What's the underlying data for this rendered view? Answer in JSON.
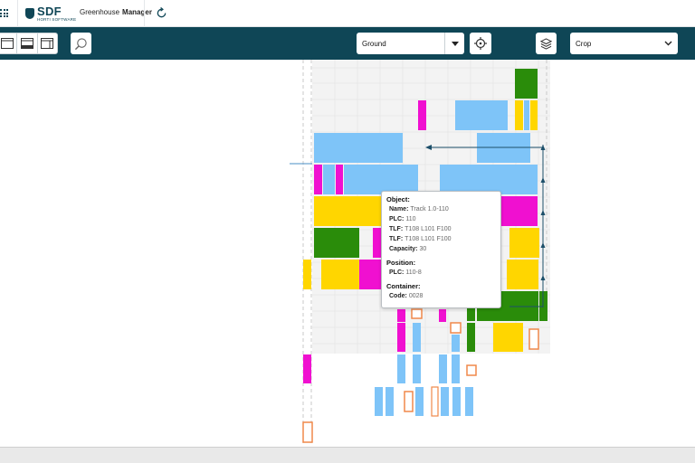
{
  "header": {
    "logo_text": "SDF",
    "logo_subtext": "HORTI SOFTWARE",
    "app_title_part1": "Greenhouse",
    "app_title_part2": "Manager"
  },
  "toolbar": {
    "layer_select_value": "Ground",
    "crop_select_value": "Crop"
  },
  "tooltip": {
    "object_heading": "Object:",
    "object_fields": [
      {
        "key": "Name:",
        "value": "Track 1.0-110"
      },
      {
        "key": "PLC:",
        "value": "110"
      },
      {
        "key": "TLF:",
        "value": "T108 L101 F100"
      },
      {
        "key": "TLF:",
        "value": "T108 L101 F100"
      },
      {
        "key": "Capacity:",
        "value": "30"
      }
    ],
    "position_heading": "Position:",
    "position_fields": [
      {
        "key": "PLC:",
        "value": "110-8"
      }
    ],
    "container_heading": "Container:",
    "container_fields": [
      {
        "key": "Code:",
        "value": "0028"
      }
    ]
  },
  "colors": {
    "toolbar_bg": "#0f4656",
    "blue_block": "#7ec4f8",
    "yellow_block": "#ffd600",
    "magenta_block": "#f010d0",
    "green_block": "#2a8c0a",
    "orange_marker": "#f0884a"
  }
}
